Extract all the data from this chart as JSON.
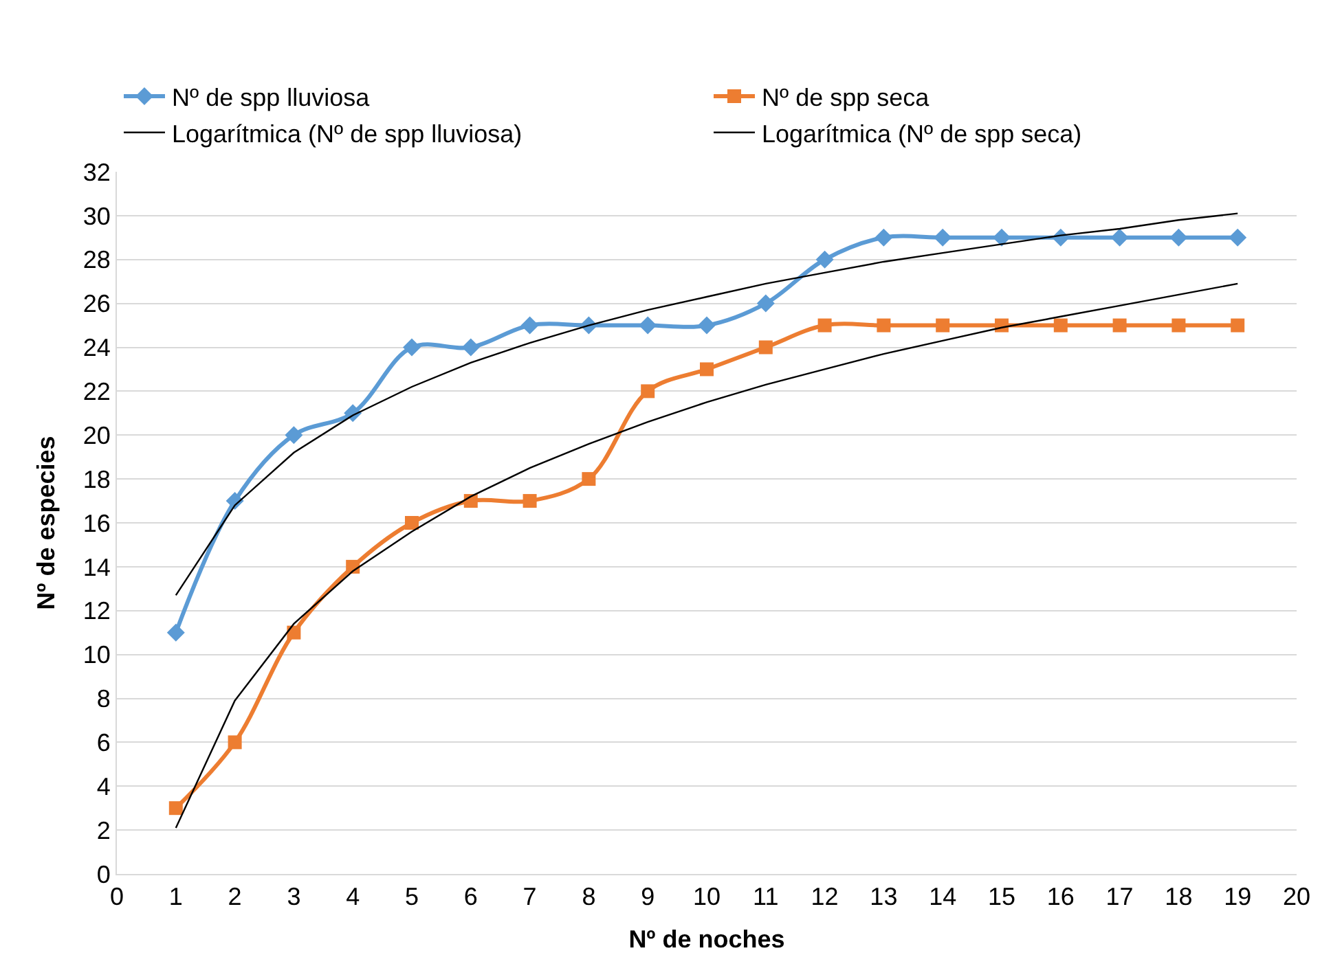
{
  "chart_data": {
    "type": "line",
    "xlabel": "Nº de noches",
    "ylabel": "Nº de especies",
    "x": [
      1,
      2,
      3,
      4,
      5,
      6,
      7,
      8,
      9,
      10,
      11,
      12,
      13,
      14,
      15,
      16,
      17,
      18,
      19
    ],
    "series": [
      {
        "name": "Nº de spp lluviosa",
        "color": "#5b9bd5",
        "marker": "diamond",
        "values": [
          11,
          17,
          20,
          21,
          24,
          24,
          25,
          25,
          25,
          25,
          26,
          28,
          29,
          29,
          29,
          29,
          29,
          29,
          29
        ]
      },
      {
        "name": "Nº de spp seca",
        "color": "#ed7d31",
        "marker": "square",
        "values": [
          3,
          6,
          11,
          14,
          16,
          17,
          17,
          18,
          22,
          23,
          24,
          25,
          25,
          25,
          25,
          25,
          25,
          25,
          25
        ]
      },
      {
        "name": "Logarítmica (Nº de spp lluviosa)",
        "color": "#000000",
        "marker": "none",
        "values": [
          12.7,
          16.8,
          19.2,
          20.9,
          22.2,
          23.3,
          24.2,
          25.0,
          25.7,
          26.3,
          26.9,
          27.4,
          27.9,
          28.3,
          28.7,
          29.1,
          29.4,
          29.8,
          30.1
        ]
      },
      {
        "name": "Logarítmica (Nº de spp seca)",
        "color": "#000000",
        "marker": "none",
        "values": [
          2.1,
          7.9,
          11.4,
          13.8,
          15.6,
          17.2,
          18.5,
          19.6,
          20.6,
          21.5,
          22.3,
          23.0,
          23.7,
          24.3,
          24.9,
          25.4,
          25.9,
          26.4,
          26.9
        ]
      }
    ],
    "xlim": [
      0,
      20
    ],
    "xticks": [
      0,
      1,
      2,
      3,
      4,
      5,
      6,
      7,
      8,
      9,
      10,
      11,
      12,
      13,
      14,
      15,
      16,
      17,
      18,
      19,
      20
    ],
    "ylim": [
      0,
      32
    ],
    "yticks": [
      0,
      2,
      4,
      6,
      8,
      10,
      12,
      14,
      16,
      18,
      20,
      22,
      24,
      26,
      28,
      30,
      32
    ],
    "grid": "y",
    "legend": "top"
  }
}
